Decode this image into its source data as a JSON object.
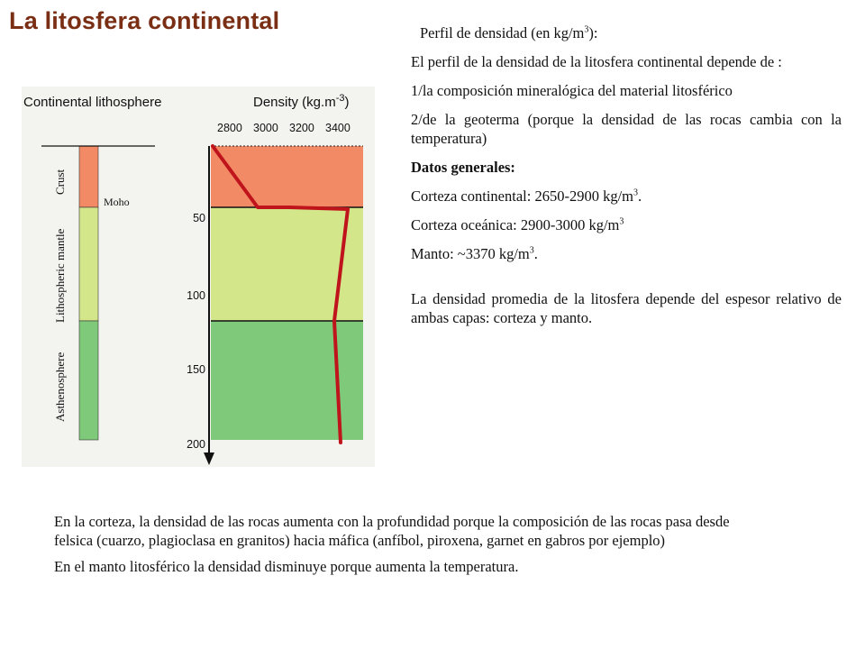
{
  "title": "La litosfera continental",
  "figure": {
    "header_left": "Continental lithosphere",
    "header_right_prefix": "Density (kg.m",
    "header_right_exp": "-3",
    "header_right_suffix": ")",
    "density_ticks": [
      "2800",
      "3000",
      "3200",
      "3400"
    ],
    "depth_ticks": [
      "50",
      "100",
      "150",
      "200"
    ],
    "layer_labels": {
      "crust": "Crust",
      "lithospheric_mantle": "Lithospheric mantle",
      "asthenosphere": "Asthenosphere",
      "moho": "Moho"
    },
    "colors": {
      "crust": "#f28a66",
      "lithospheric_mantle": "#d3e68a",
      "asthenosphere": "#7ec97a",
      "profile": "#c0141c",
      "background": "#f3f3f0"
    },
    "profile": {
      "unit_x": "kg.m-3",
      "depth_points": [
        0,
        50,
        50,
        120,
        195
      ],
      "density_points": [
        2800,
        3000,
        3400,
        3350,
        3400
      ]
    }
  },
  "right": {
    "p0_text": "Perfil de densidad (en kg/m",
    "p0_sup": "3",
    "p0_end": "):",
    "p1": "El perfil de la densidad de la litosfera continental depende de :",
    "p2": "1/la composición mineralógica del material litosférico",
    "p3": "2/de la geoterma (porque la densidad de las rocas cambia con la temperatura)",
    "p4": "Datos generales:",
    "p5_text": "Corteza continental: 2650-2900 kg/m",
    "p5_sup": "3",
    "p5_end": ".",
    "p6_text": "Corteza oceánica: 2900-3000 kg/m",
    "p6_sup": "3",
    "p7_text": "Manto: ~3370  kg/m",
    "p7_sup": "3",
    "p7_end": ".",
    "p8": "La densidad promedia de la litosfera depende del espesor relativo de ambas capas: corteza y manto."
  },
  "bottom": {
    "p1": "En la corteza, la densidad de las rocas aumenta con la profundidad porque la composición de las rocas pasa desde felsica (cuarzo, plagioclasa en granitos) hacia máfica (anfíbol, piroxena, garnet en gabros por ejemplo)",
    "p2": "En el manto litosférico la densidad disminuye porque aumenta la temperatura."
  }
}
